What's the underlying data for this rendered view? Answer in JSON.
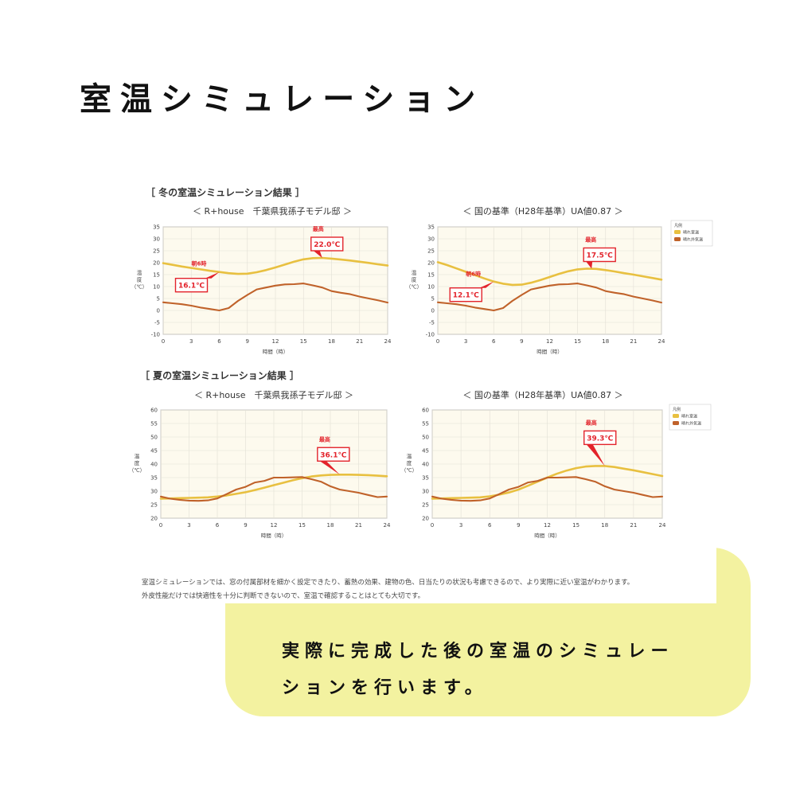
{
  "page": {
    "title": "室温シミュレーション",
    "tagline_line1": "実際に完成した後の室温のシミュレー",
    "tagline_line2": "ションを行います。",
    "note_line1": "室温シミュレーションでは、窓の付属部材を細かく設定できたり、蓄熱の効果、建物の色、日当たりの状況も考慮できるので、より実際に近い室温がわかります。",
    "note_line2": "外皮性能だけでは快適性を十分に判断できないので、室温で確認することはとても大切です。"
  },
  "sections": {
    "winter": "［ 冬の室温シミュレーション結果 ］",
    "summer": "［ 夏の室温シミュレーション結果 ］"
  },
  "colors": {
    "indoor": "#e8c040",
    "outdoor": "#c0622a",
    "plot_bg": "#fdfaee",
    "grid": "#e2dfd5",
    "callout": "#e3232b",
    "accent_panel": "#f3f2a0"
  },
  "chart_data": [
    {
      "type": "line",
      "title": "＜ R+house　千葉県我孫子モデル邸 ＞",
      "xlabel": "時間（時）",
      "ylabel": "温度（℃）",
      "xlim": [
        0,
        24
      ],
      "ylim": [
        -10,
        35
      ],
      "xticks": [
        0,
        3,
        6,
        9,
        12,
        15,
        18,
        21,
        24
      ],
      "yticks": [
        -10,
        -5,
        0,
        5,
        10,
        15,
        20,
        25,
        30,
        35
      ],
      "grid": true,
      "legend": "none",
      "series": [
        {
          "role": "indoor",
          "x": [
            0,
            1,
            2,
            3,
            4,
            5,
            6,
            7,
            8,
            9,
            10,
            11,
            12,
            13,
            14,
            15,
            16,
            17,
            18,
            19,
            20,
            21,
            22,
            23,
            24
          ],
          "values": [
            19.8,
            19.1,
            18.4,
            17.8,
            17.2,
            16.6,
            16.1,
            15.6,
            15.3,
            15.4,
            16.0,
            16.9,
            18.0,
            19.2,
            20.4,
            21.4,
            21.9,
            22.0,
            21.7,
            21.3,
            20.9,
            20.4,
            19.9,
            19.3,
            18.8
          ]
        },
        {
          "role": "outdoor",
          "x": [
            0,
            1,
            2,
            3,
            4,
            5,
            6,
            7,
            8,
            9,
            10,
            11,
            12,
            13,
            14,
            15,
            16,
            17,
            18,
            19,
            20,
            21,
            22,
            23,
            24
          ],
          "values": [
            3.4,
            3.0,
            2.6,
            2.0,
            1.2,
            0.6,
            0.0,
            1.0,
            4.0,
            6.5,
            8.8,
            9.6,
            10.4,
            10.9,
            11.0,
            11.3,
            10.5,
            9.6,
            8.1,
            7.4,
            6.8,
            5.8,
            5.0,
            4.2,
            3.3
          ]
        }
      ],
      "annotations": [
        {
          "label": "朝6時",
          "value": "16.1℃",
          "x": 6,
          "y": 16.1
        },
        {
          "label": "最高",
          "value": "22.0℃",
          "x": 17,
          "y": 22.0
        }
      ]
    },
    {
      "type": "line",
      "title": "＜ 国の基準（H28年基準）UA値0.87 ＞",
      "xlabel": "時間（時）",
      "ylabel": "温度（℃）",
      "xlim": [
        0,
        24
      ],
      "ylim": [
        -10,
        35
      ],
      "xticks": [
        0,
        3,
        6,
        9,
        12,
        15,
        18,
        21,
        24
      ],
      "yticks": [
        -10,
        -5,
        0,
        5,
        10,
        15,
        20,
        25,
        30,
        35
      ],
      "grid": true,
      "legend": "top-right",
      "legend_title": "凡例",
      "series": [
        {
          "name": "晴れ室温",
          "role": "indoor",
          "x": [
            0,
            1,
            2,
            3,
            4,
            5,
            6,
            7,
            8,
            9,
            10,
            11,
            12,
            13,
            14,
            15,
            16,
            17,
            18,
            19,
            20,
            21,
            22,
            23,
            24
          ],
          "values": [
            20.2,
            19.0,
            17.6,
            16.2,
            14.8,
            13.4,
            12.1,
            11.2,
            10.7,
            10.8,
            11.6,
            12.7,
            14.0,
            15.3,
            16.4,
            17.2,
            17.5,
            17.4,
            16.9,
            16.3,
            15.6,
            15.0,
            14.3,
            13.6,
            12.9
          ]
        },
        {
          "name": "晴れ外気温",
          "role": "outdoor",
          "x": [
            0,
            1,
            2,
            3,
            4,
            5,
            6,
            7,
            8,
            9,
            10,
            11,
            12,
            13,
            14,
            15,
            16,
            17,
            18,
            19,
            20,
            21,
            22,
            23,
            24
          ],
          "values": [
            3.4,
            3.0,
            2.6,
            2.0,
            1.2,
            0.6,
            0.0,
            1.0,
            4.0,
            6.5,
            8.8,
            9.6,
            10.4,
            10.9,
            11.0,
            11.3,
            10.5,
            9.6,
            8.1,
            7.4,
            6.8,
            5.8,
            5.0,
            4.2,
            3.3
          ]
        }
      ],
      "annotations": [
        {
          "label": "朝6時",
          "value": "12.1℃",
          "x": 6,
          "y": 12.1
        },
        {
          "label": "最高",
          "value": "17.5℃",
          "x": 16.5,
          "y": 17.5
        }
      ]
    },
    {
      "type": "line",
      "title": "＜ R+house　千葉県我孫子モデル邸 ＞",
      "xlabel": "時間（時）",
      "ylabel": "温度（℃）",
      "xlim": [
        0,
        24
      ],
      "ylim": [
        20,
        60
      ],
      "xticks": [
        0,
        3,
        6,
        9,
        12,
        15,
        18,
        21,
        24
      ],
      "yticks": [
        20,
        25,
        30,
        35,
        40,
        45,
        50,
        55,
        60
      ],
      "grid": true,
      "legend": "none",
      "series": [
        {
          "role": "indoor",
          "x": [
            0,
            1,
            2,
            3,
            4,
            5,
            6,
            7,
            8,
            9,
            10,
            11,
            12,
            13,
            14,
            15,
            16,
            17,
            18,
            19,
            20,
            21,
            22,
            23,
            24
          ],
          "values": [
            27.2,
            27.3,
            27.4,
            27.5,
            27.6,
            27.7,
            28.0,
            28.4,
            29.0,
            29.6,
            30.4,
            31.3,
            32.2,
            33.1,
            34.0,
            34.8,
            35.4,
            35.8,
            36.0,
            36.1,
            36.1,
            36.0,
            35.9,
            35.7,
            35.5
          ]
        },
        {
          "role": "outdoor",
          "x": [
            0,
            1,
            2,
            3,
            4,
            5,
            6,
            7,
            8,
            9,
            10,
            11,
            12,
            13,
            14,
            15,
            16,
            17,
            18,
            19,
            20,
            21,
            22,
            23,
            24
          ],
          "values": [
            28.0,
            27.2,
            26.8,
            26.5,
            26.4,
            26.6,
            27.3,
            28.9,
            30.6,
            31.6,
            33.2,
            33.8,
            35.0,
            35.0,
            35.1,
            35.2,
            34.4,
            33.5,
            31.8,
            30.6,
            30.0,
            29.4,
            28.6,
            27.8,
            28.0
          ]
        }
      ],
      "annotations": [
        {
          "label": "最高",
          "value": "36.1℃",
          "x": 19,
          "y": 36.1
        }
      ]
    },
    {
      "type": "line",
      "title": "＜ 国の基準（H28年基準）UA値0.87 ＞",
      "xlabel": "時間（時）",
      "ylabel": "温度（℃）",
      "xlim": [
        0,
        24
      ],
      "ylim": [
        20,
        60
      ],
      "xticks": [
        0,
        3,
        6,
        9,
        12,
        15,
        18,
        21,
        24
      ],
      "yticks": [
        20,
        25,
        30,
        35,
        40,
        45,
        50,
        55,
        60
      ],
      "grid": true,
      "legend": "top-right",
      "legend_title": "凡例",
      "series": [
        {
          "name": "晴れ室温",
          "role": "indoor",
          "x": [
            0,
            1,
            2,
            3,
            4,
            5,
            6,
            7,
            8,
            9,
            10,
            11,
            12,
            13,
            14,
            15,
            16,
            17,
            18,
            19,
            20,
            21,
            22,
            23,
            24
          ],
          "values": [
            27.2,
            27.3,
            27.4,
            27.5,
            27.6,
            27.7,
            28.1,
            28.7,
            29.5,
            30.6,
            32.0,
            33.5,
            35.0,
            36.4,
            37.6,
            38.5,
            39.1,
            39.3,
            39.3,
            38.9,
            38.3,
            37.7,
            37.0,
            36.3,
            35.6
          ]
        },
        {
          "name": "晴れ外気温",
          "role": "outdoor",
          "x": [
            0,
            1,
            2,
            3,
            4,
            5,
            6,
            7,
            8,
            9,
            10,
            11,
            12,
            13,
            14,
            15,
            16,
            17,
            18,
            19,
            20,
            21,
            22,
            23,
            24
          ],
          "values": [
            28.0,
            27.2,
            26.8,
            26.5,
            26.4,
            26.6,
            27.3,
            28.9,
            30.6,
            31.6,
            33.2,
            33.8,
            35.0,
            35.0,
            35.1,
            35.2,
            34.4,
            33.5,
            31.8,
            30.6,
            30.0,
            29.4,
            28.6,
            27.8,
            28.0
          ]
        }
      ],
      "annotations": [
        {
          "label": "最高",
          "value": "39.3℃",
          "x": 18,
          "y": 39.3
        }
      ]
    }
  ]
}
